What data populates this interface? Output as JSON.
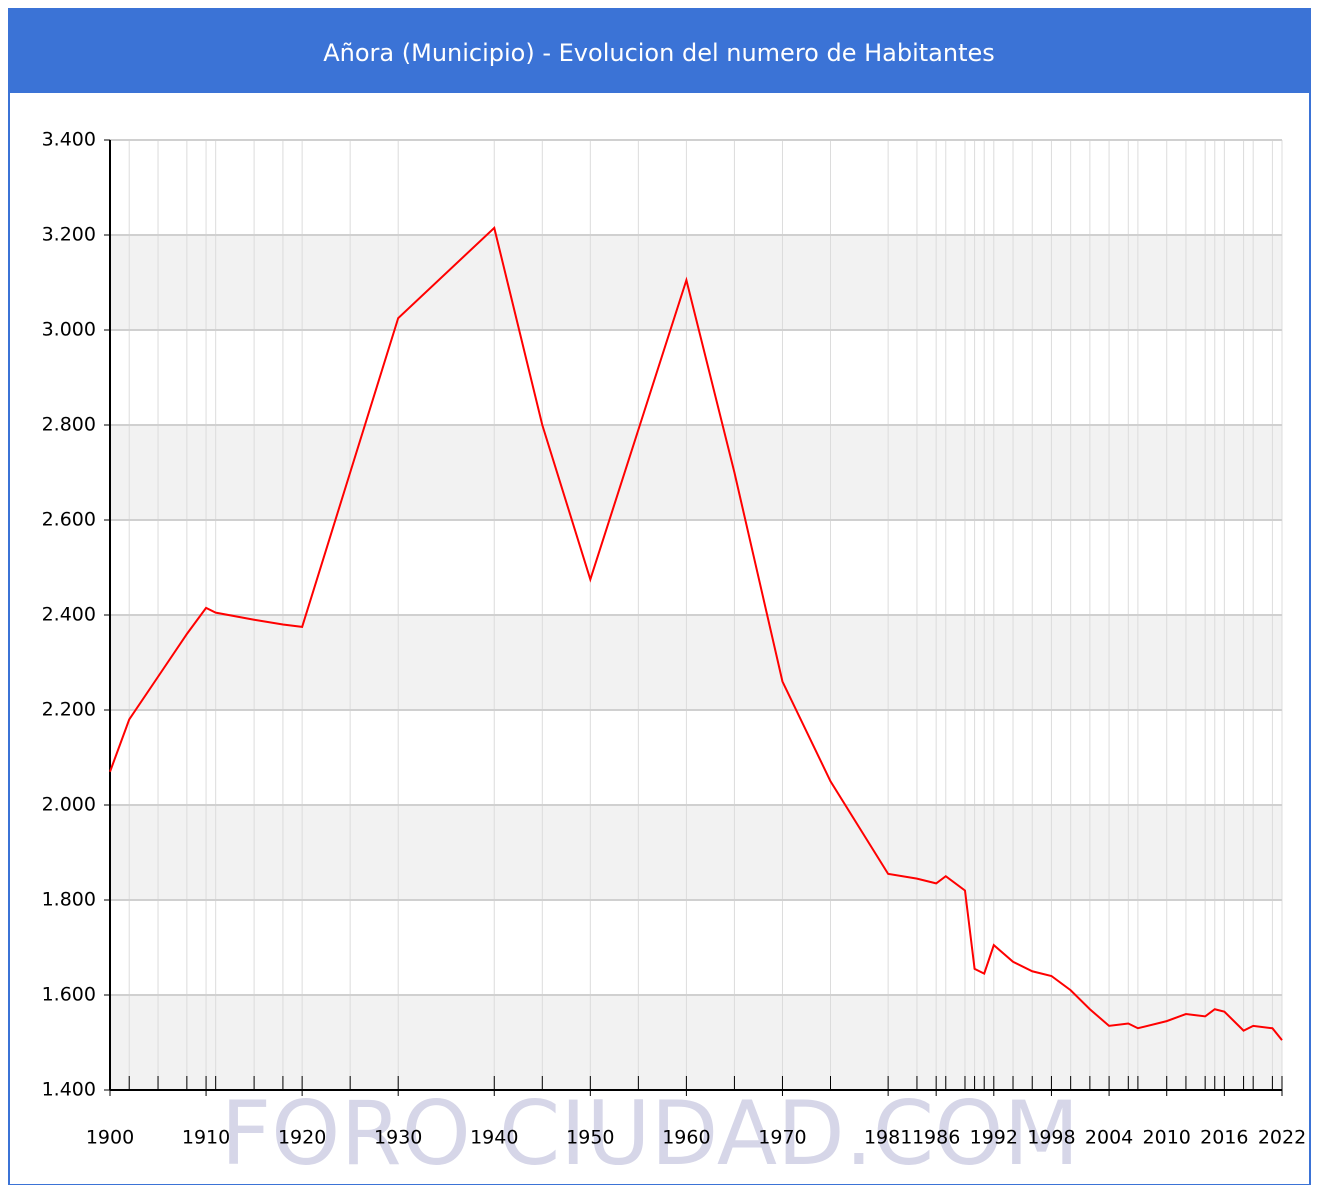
{
  "chart_data": {
    "type": "line",
    "title": "Añora (Municipio) - Evolucion del numero de Habitantes",
    "watermark": "FORO CIUDAD.COM",
    "x": [
      1900,
      1902,
      1905,
      1908,
      1910,
      1911,
      1915,
      1918,
      1920,
      1925,
      1930,
      1940,
      1945,
      1950,
      1955,
      1960,
      1965,
      1970,
      1975,
      1981,
      1984,
      1986,
      1987,
      1989,
      1990,
      1991,
      1992,
      1994,
      1996,
      1998,
      2000,
      2002,
      2004,
      2006,
      2007,
      2010,
      2012,
      2014,
      2015,
      2016,
      2018,
      2019,
      2021,
      2022
    ],
    "series": [
      {
        "name": "Habitantes",
        "color": "#ff0000",
        "values": [
          2070,
          2180,
          2270,
          2360,
          2415,
          2405,
          2390,
          2380,
          2375,
          2700,
          3025,
          3215,
          2800,
          2475,
          2790,
          3105,
          2700,
          2260,
          2050,
          1855,
          1845,
          1835,
          1850,
          1820,
          1655,
          1645,
          1705,
          1670,
          1650,
          1640,
          1610,
          1570,
          1535,
          1540,
          1530,
          1545,
          1560,
          1555,
          1570,
          1565,
          1525,
          1535,
          1530,
          1505
        ]
      }
    ],
    "xlim": [
      1900,
      2022
    ],
    "xticks": [
      1900,
      1910,
      1920,
      1930,
      1940,
      1950,
      1960,
      1970,
      1981,
      1986,
      1992,
      1998,
      2004,
      2010,
      2016,
      2022
    ],
    "ylim": [
      1400,
      3400
    ],
    "yticks": [
      {
        "value": 1400,
        "label": "1.400"
      },
      {
        "value": 1600,
        "label": "1.600"
      },
      {
        "value": 1800,
        "label": "1.800"
      },
      {
        "value": 2000,
        "label": "2.000"
      },
      {
        "value": 2200,
        "label": "2.200"
      },
      {
        "value": 2400,
        "label": "2.400"
      },
      {
        "value": 2600,
        "label": "2.600"
      },
      {
        "value": 2800,
        "label": "2.800"
      },
      {
        "value": 3000,
        "label": "3.000"
      },
      {
        "value": 3200,
        "label": "3.200"
      },
      {
        "value": 3400,
        "label": "3.400"
      }
    ],
    "grid": true
  }
}
